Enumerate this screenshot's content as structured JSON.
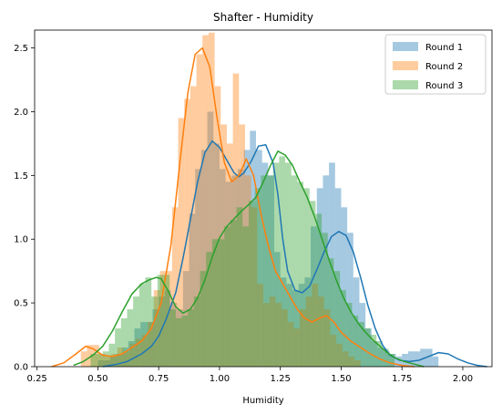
{
  "chart_data": {
    "type": "histogram",
    "title": "Shafter - Humidity",
    "xlabel": "Humidity",
    "ylabel": "",
    "xlim": [
      0.24,
      2.12
    ],
    "ylim": [
      0,
      2.64
    ],
    "xticks": [
      "0.25",
      "0.50",
      "0.75",
      "1.00",
      "1.25",
      "1.50",
      "1.75",
      "2.00"
    ],
    "xtick_values": [
      0.25,
      0.5,
      0.75,
      1.0,
      1.25,
      1.5,
      1.75,
      2.0
    ],
    "yticks": [
      "0.0",
      "0.5",
      "1.0",
      "1.5",
      "2.0",
      "2.5"
    ],
    "ytick_values": [
      0.0,
      0.5,
      1.0,
      1.5,
      2.0,
      2.5
    ],
    "legend_position": "top-right",
    "bin_width": 0.025,
    "series": [
      {
        "name": "Round 1",
        "fill": "#1f77b4",
        "line": "#1f77b4",
        "bin_start": 0.5,
        "hist": [
          0.05,
          0.05,
          0.08,
          0.1,
          0.15,
          0.2,
          0.3,
          0.35,
          0.35,
          0.45,
          0.55,
          0.6,
          0.5,
          0.45,
          0.75,
          1.2,
          1.55,
          1.7,
          2.0,
          1.75,
          1.55,
          1.45,
          1.5,
          1.55,
          1.7,
          1.85,
          1.7,
          1.6,
          1.5,
          0.9,
          0.7,
          0.65,
          0.6,
          0.65,
          0.7,
          1.1,
          1.4,
          1.5,
          1.6,
          1.4,
          1.25,
          1.05,
          0.7,
          0.5,
          0.3,
          0.2,
          0.15,
          0.12,
          0.1,
          0.08,
          0.1,
          0.12,
          0.12,
          0.14,
          0.14,
          0.08
        ],
        "kde_x": [
          0.52,
          0.55,
          0.58,
          0.62,
          0.65,
          0.68,
          0.72,
          0.75,
          0.78,
          0.82,
          0.85,
          0.88,
          0.91,
          0.94,
          0.97,
          1.0,
          1.03,
          1.06,
          1.08,
          1.1,
          1.13,
          1.16,
          1.19,
          1.22,
          1.24,
          1.26,
          1.28,
          1.31,
          1.34,
          1.37,
          1.4,
          1.43,
          1.46,
          1.49,
          1.52,
          1.55,
          1.58,
          1.61,
          1.64,
          1.67,
          1.7,
          1.74,
          1.78,
          1.82,
          1.86,
          1.9,
          1.94,
          1.98,
          2.02,
          2.06,
          2.1
        ],
        "kde_y": [
          0.0,
          0.01,
          0.02,
          0.04,
          0.07,
          0.1,
          0.16,
          0.24,
          0.37,
          0.58,
          0.85,
          1.15,
          1.45,
          1.68,
          1.77,
          1.72,
          1.62,
          1.52,
          1.49,
          1.52,
          1.61,
          1.73,
          1.74,
          1.6,
          1.35,
          1.0,
          0.75,
          0.6,
          0.58,
          0.63,
          0.76,
          0.9,
          1.02,
          1.06,
          1.03,
          0.9,
          0.7,
          0.48,
          0.3,
          0.17,
          0.09,
          0.05,
          0.04,
          0.05,
          0.08,
          0.11,
          0.1,
          0.06,
          0.03,
          0.01,
          0.0
        ]
      },
      {
        "name": "Round 2",
        "fill": "#ff7f0e",
        "line": "#ff7f0e",
        "bin_start": 0.43,
        "hist": [
          0.12,
          0.17,
          0.17,
          0.1,
          0.08,
          0.1,
          0.15,
          0.12,
          0.18,
          0.22,
          0.25,
          0.35,
          0.6,
          0.75,
          0.75,
          1.25,
          1.95,
          2.1,
          2.2,
          2.45,
          2.6,
          2.62,
          2.2,
          1.9,
          1.75,
          2.3,
          1.9,
          1.5,
          1.25,
          0.65,
          0.5,
          0.55,
          0.5,
          0.45,
          0.35,
          0.3,
          0.45,
          0.55,
          0.65,
          0.55,
          0.45,
          0.25,
          0.18,
          0.12,
          0.08,
          0.05
        ],
        "kde_x": [
          0.31,
          0.36,
          0.41,
          0.45,
          0.48,
          0.52,
          0.56,
          0.6,
          0.64,
          0.68,
          0.72,
          0.76,
          0.8,
          0.84,
          0.87,
          0.9,
          0.93,
          0.96,
          0.99,
          1.02,
          1.05,
          1.08,
          1.11,
          1.14,
          1.17,
          1.2,
          1.23,
          1.26,
          1.29,
          1.32,
          1.35,
          1.38,
          1.41,
          1.44,
          1.47,
          1.5,
          1.54,
          1.58,
          1.62,
          1.66,
          1.7,
          1.75,
          1.8
        ],
        "kde_y": [
          0.0,
          0.03,
          0.1,
          0.16,
          0.14,
          0.09,
          0.08,
          0.1,
          0.15,
          0.2,
          0.3,
          0.5,
          0.95,
          1.65,
          2.15,
          2.45,
          2.5,
          2.35,
          1.95,
          1.6,
          1.45,
          1.5,
          1.63,
          1.5,
          1.2,
          0.95,
          0.75,
          0.65,
          0.55,
          0.45,
          0.38,
          0.35,
          0.38,
          0.4,
          0.35,
          0.27,
          0.2,
          0.15,
          0.1,
          0.06,
          0.03,
          0.01,
          0.0
        ]
      },
      {
        "name": "Round 3",
        "fill": "#2ca02c",
        "line": "#2ca02c",
        "bin_start": 0.47,
        "hist": [
          0.1,
          0.1,
          0.12,
          0.18,
          0.3,
          0.38,
          0.45,
          0.55,
          0.65,
          0.7,
          0.55,
          0.72,
          0.72,
          0.45,
          0.38,
          0.4,
          0.45,
          0.55,
          0.75,
          0.9,
          1.0,
          1.0,
          1.1,
          1.15,
          1.25,
          1.1,
          1.3,
          1.4,
          1.5,
          1.5,
          1.6,
          1.65,
          1.6,
          1.5,
          1.45,
          1.4,
          1.3,
          1.2,
          1.05,
          0.85,
          0.75,
          0.6,
          0.5,
          0.4,
          0.35,
          0.3,
          0.25,
          0.2,
          0.14,
          0.1
        ],
        "kde_x": [
          0.4,
          0.44,
          0.48,
          0.52,
          0.56,
          0.6,
          0.64,
          0.68,
          0.71,
          0.74,
          0.76,
          0.79,
          0.82,
          0.85,
          0.88,
          0.91,
          0.94,
          0.97,
          1.0,
          1.03,
          1.06,
          1.09,
          1.12,
          1.15,
          1.18,
          1.21,
          1.24,
          1.27,
          1.3,
          1.33,
          1.36,
          1.39,
          1.42,
          1.45,
          1.48,
          1.51,
          1.54,
          1.57,
          1.6,
          1.63,
          1.66,
          1.69,
          1.72,
          1.76,
          1.8,
          1.84
        ],
        "kde_y": [
          0.01,
          0.04,
          0.09,
          0.16,
          0.28,
          0.43,
          0.57,
          0.65,
          0.68,
          0.7,
          0.69,
          0.59,
          0.47,
          0.42,
          0.45,
          0.54,
          0.68,
          0.86,
          1.01,
          1.1,
          1.16,
          1.22,
          1.27,
          1.33,
          1.45,
          1.58,
          1.69,
          1.66,
          1.58,
          1.45,
          1.33,
          1.18,
          1.01,
          0.84,
          0.68,
          0.54,
          0.43,
          0.34,
          0.27,
          0.21,
          0.16,
          0.11,
          0.07,
          0.04,
          0.02,
          0.0
        ]
      }
    ]
  }
}
